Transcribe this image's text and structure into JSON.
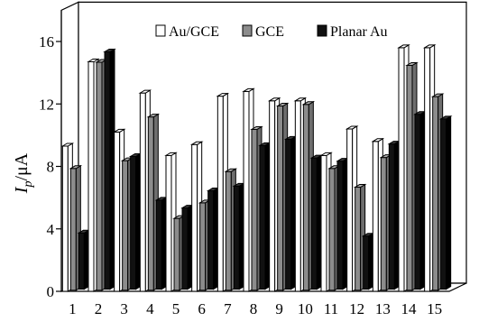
{
  "chart_data": {
    "type": "bar",
    "categories": [
      "1",
      "2",
      "3",
      "4",
      "5",
      "6",
      "7",
      "8",
      "9",
      "10",
      "11",
      "12",
      "13",
      "14",
      "15"
    ],
    "series": [
      {
        "name": "Au/GCE",
        "values": [
          9.3,
          14.7,
          10.2,
          12.7,
          8.7,
          9.4,
          12.5,
          12.8,
          12.2,
          12.2,
          8.7,
          10.4,
          9.6,
          15.6,
          15.6
        ]
      },
      {
        "name": "GCE",
        "values": [
          7.8,
          14.6,
          8.3,
          11.1,
          4.6,
          5.6,
          7.6,
          10.3,
          11.8,
          11.9,
          7.8,
          6.6,
          8.5,
          14.4,
          12.4
        ]
      },
      {
        "name": "Planar Au",
        "values": [
          3.6,
          15.2,
          8.5,
          5.7,
          5.2,
          6.3,
          6.6,
          9.2,
          9.6,
          8.4,
          8.2,
          3.4,
          9.3,
          11.2,
          10.9
        ]
      }
    ],
    "yticks": [
      "0",
      "4",
      "8",
      "12",
      "16"
    ],
    "ylim": [
      0,
      18
    ],
    "ylabel": {
      "main": "I",
      "sub": "p",
      "unit": "/μA"
    },
    "legend_position": "top-right",
    "colors": {
      "Au/GCE": "#ffffff",
      "GCE": "#8c8c8c",
      "Planar Au": "#111111"
    }
  }
}
